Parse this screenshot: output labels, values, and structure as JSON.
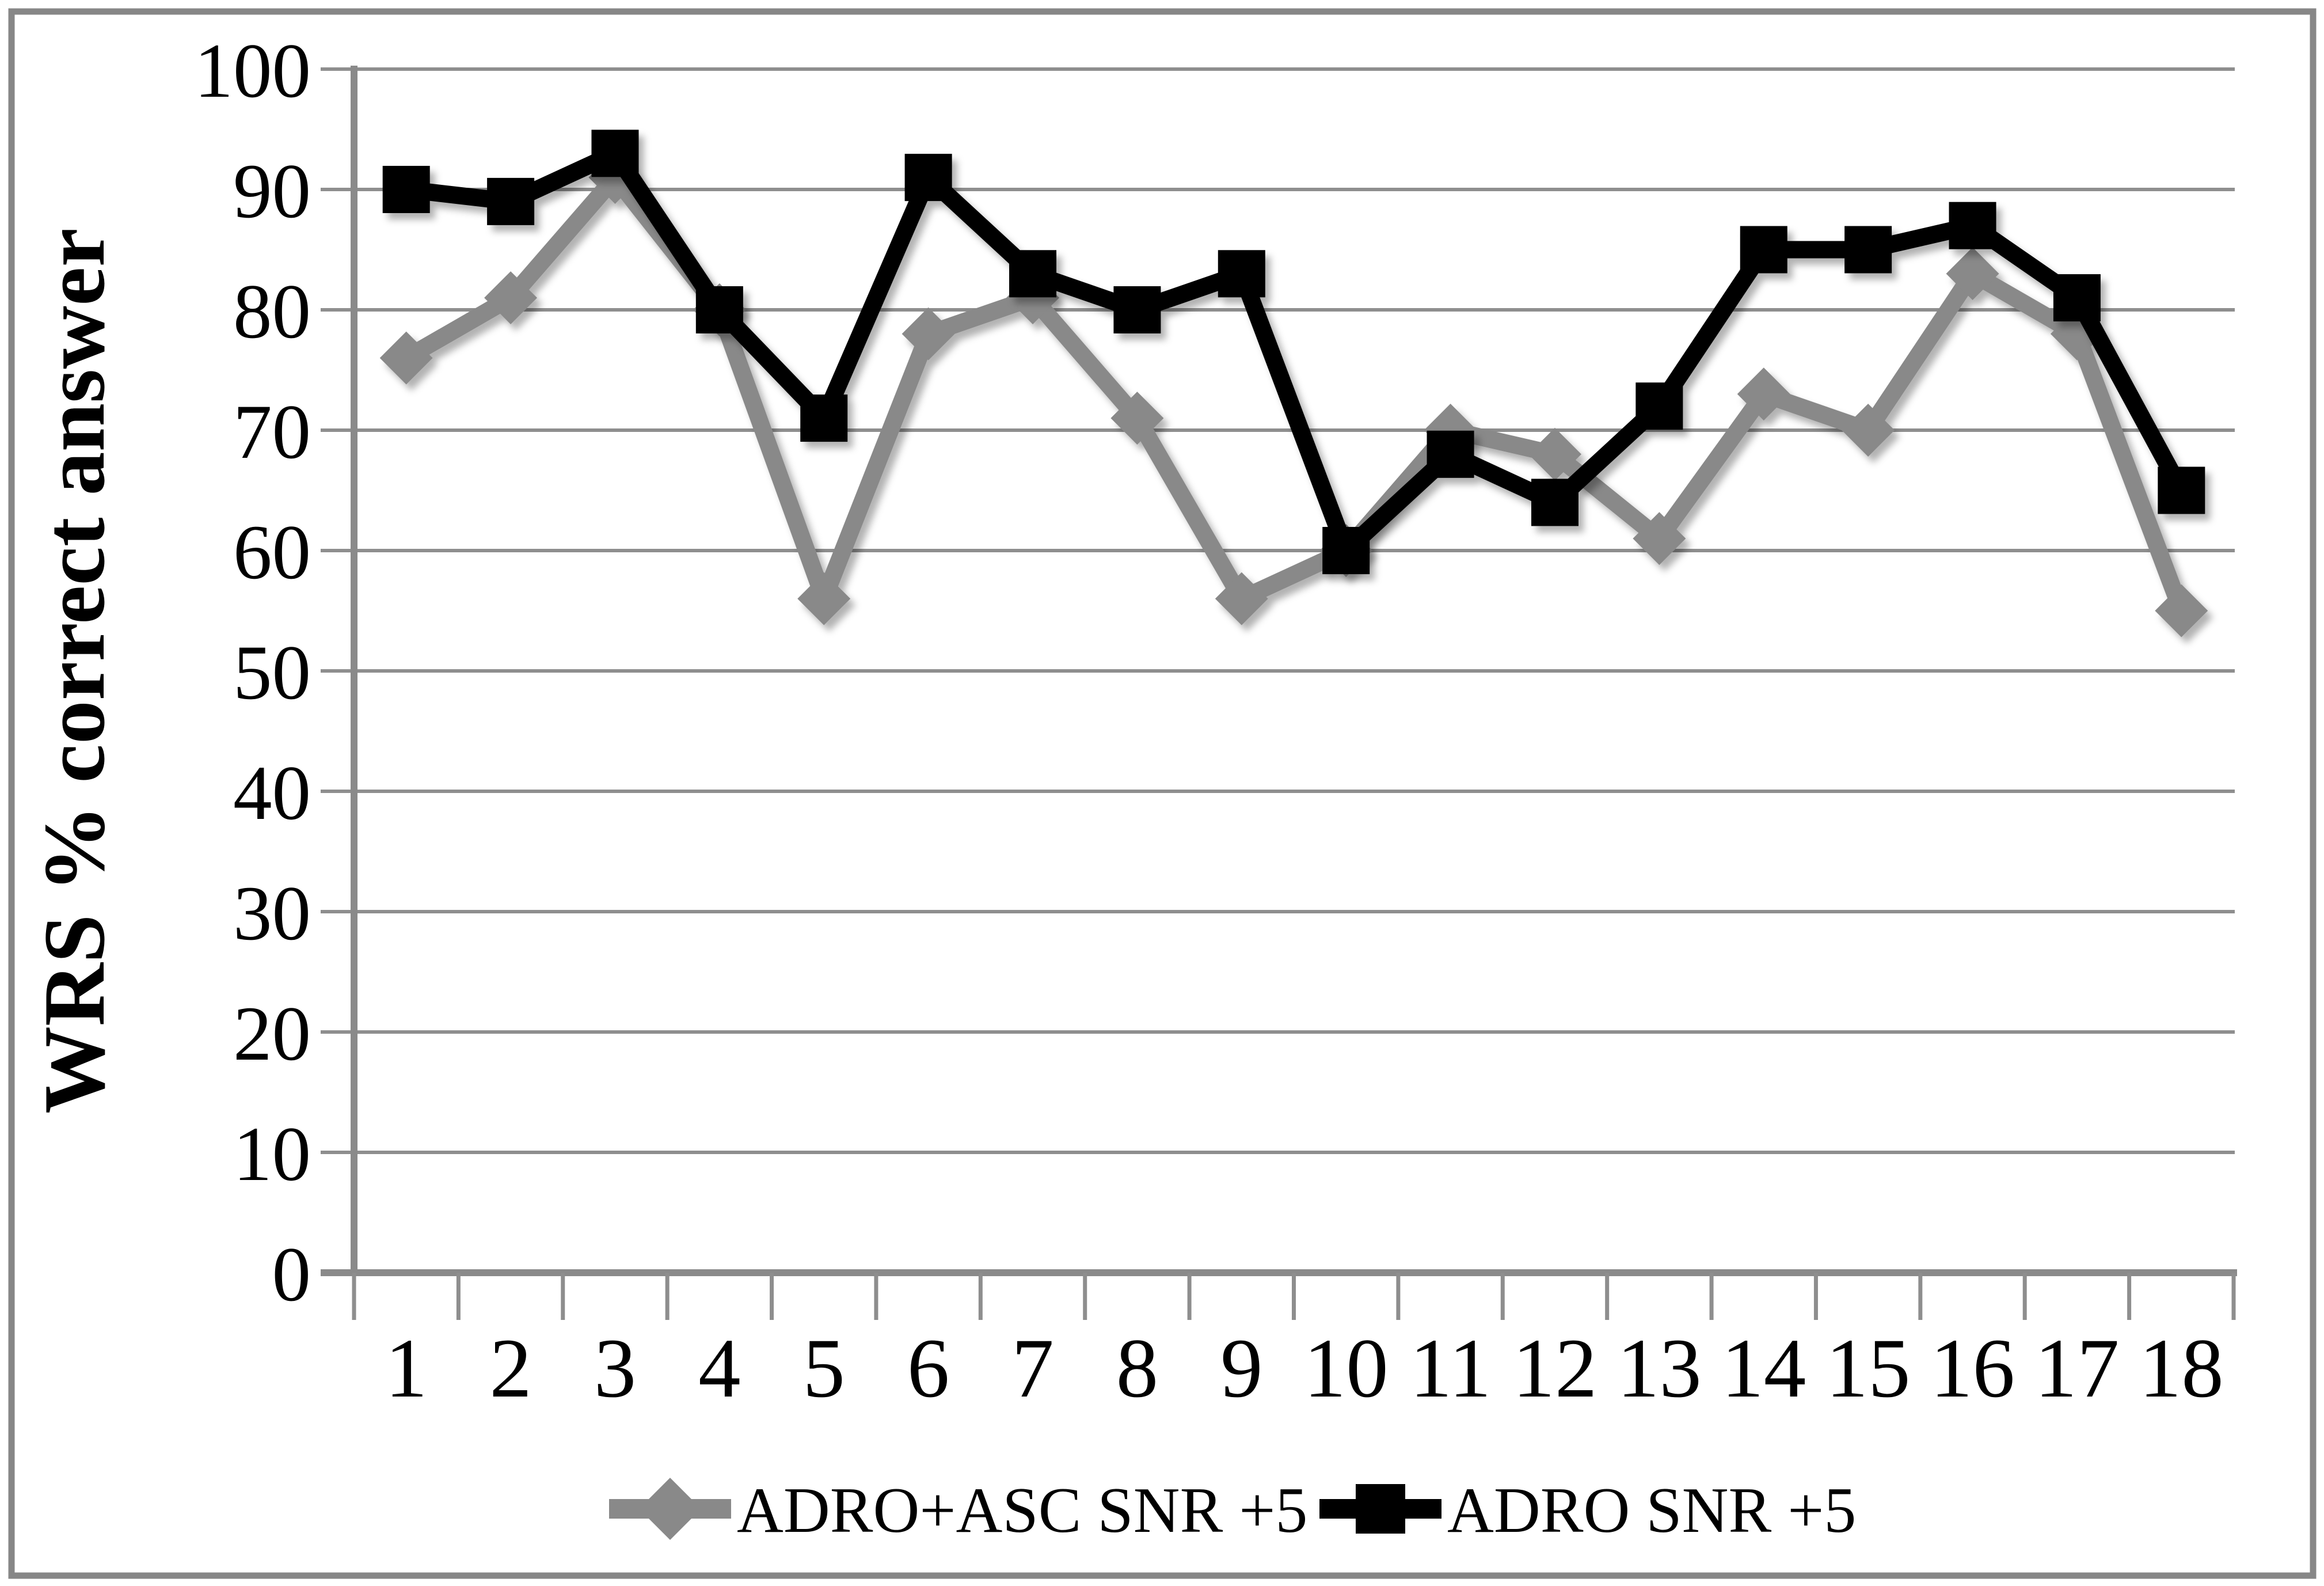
{
  "figure": {
    "background": "#ffffff",
    "border_color": "#878787",
    "grid_color": "#8E8E8E",
    "axis_color": "#8A8A8A"
  },
  "chart_data": {
    "type": "line",
    "title": "",
    "xlabel": "",
    "ylabel": "WRS % correct answer",
    "ylim": [
      0,
      100
    ],
    "ytick_step": 10,
    "yticks": [
      0,
      10,
      20,
      30,
      40,
      50,
      60,
      70,
      80,
      90,
      100
    ],
    "grid": true,
    "legend_position": "bottom",
    "categories": [
      "1",
      "2",
      "3",
      "4",
      "5",
      "6",
      "7",
      "8",
      "9",
      "10",
      "11",
      "12",
      "13",
      "14",
      "15",
      "16",
      "17",
      "18"
    ],
    "series": [
      {
        "name": "ADRO+ASC SNR +5",
        "marker": "diamond",
        "color": "#898989",
        "values": [
          76,
          81,
          91,
          80,
          56,
          78,
          81,
          71,
          56,
          60,
          70,
          68,
          61,
          73,
          70,
          83,
          78,
          55
        ]
      },
      {
        "name": "ADRO SNR +5",
        "marker": "square",
        "color": "#000000",
        "values": [
          90,
          89,
          93,
          80,
          71,
          91,
          83,
          80,
          83,
          60,
          68,
          64,
          72,
          85,
          85,
          87,
          81,
          65
        ]
      }
    ]
  }
}
